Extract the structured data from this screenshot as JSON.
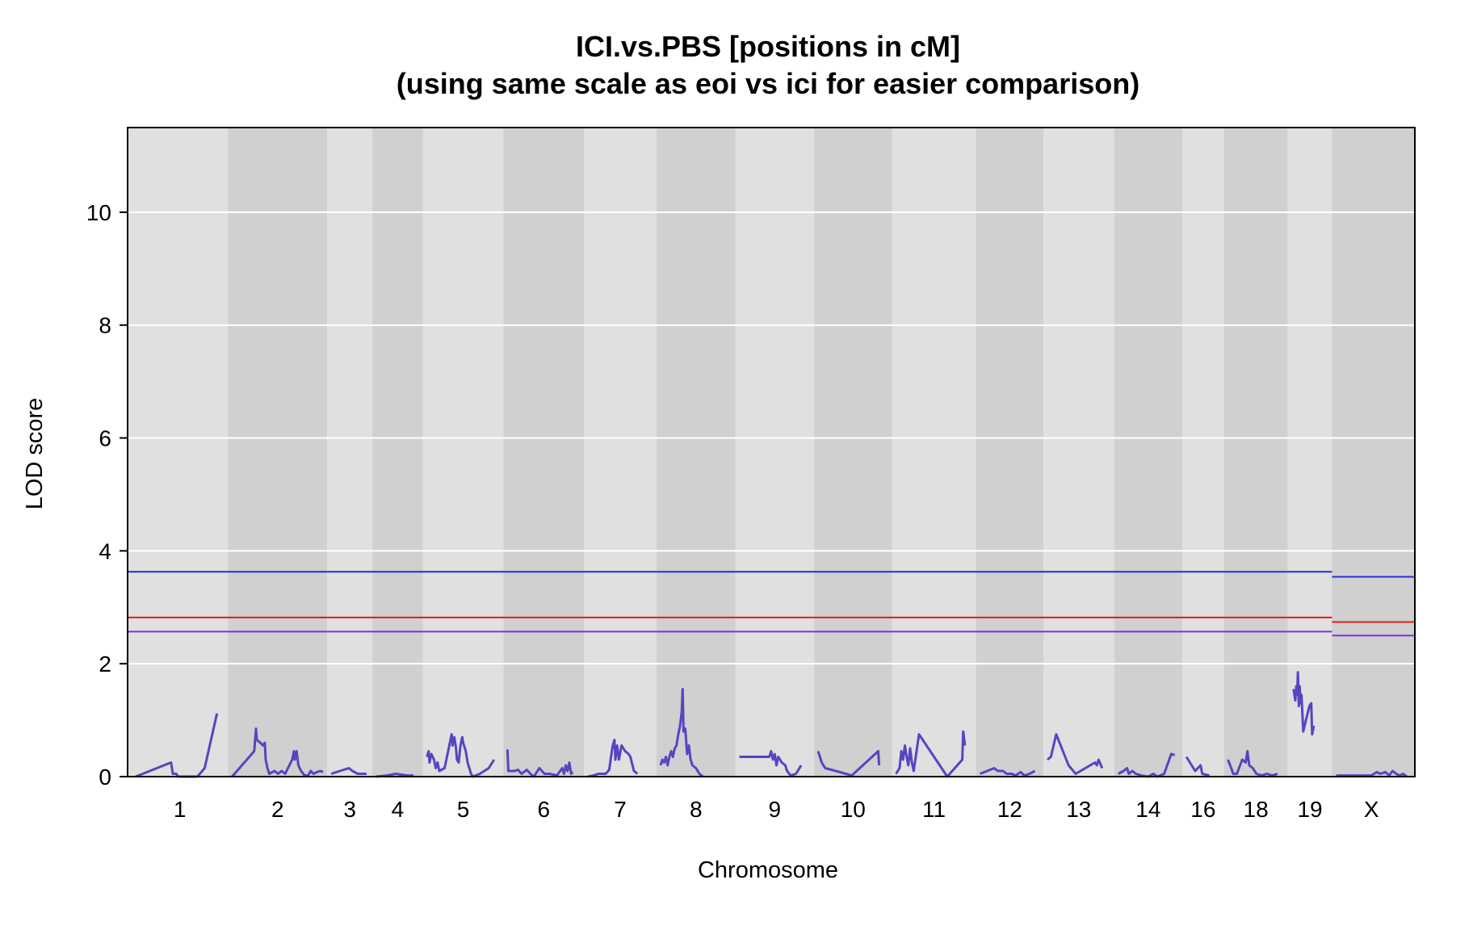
{
  "chart_data": {
    "type": "line",
    "title_line1": "ICI.vs.PBS [positions in cM]",
    "title_line2": "(using same scale as eoi vs ici for easier comparison)",
    "xlabel": "Chromosome",
    "ylabel": "LOD score",
    "ylim": [
      0,
      11.5
    ],
    "yticks": [
      0,
      2,
      4,
      6,
      8,
      10
    ],
    "grid": "horizontal",
    "colors": {
      "band_light": "#e0e0e0",
      "band_dark": "#d0d0d0",
      "gridline": "#ffffff",
      "lod_curve": "#5546c0",
      "threshold_high": "#2a2ad6",
      "threshold_mid": "#e31a1c",
      "threshold_low": "#8a2be2"
    },
    "chromosomes": [
      {
        "label": "1",
        "length": 100,
        "points": [
          [
            0,
            0
          ],
          [
            40,
            0.25
          ],
          [
            42,
            0.05
          ],
          [
            46,
            0.05
          ],
          [
            48,
            0
          ],
          [
            70,
            0
          ],
          [
            78,
            0.15
          ],
          [
            92,
            1.12
          ]
        ]
      },
      {
        "label": "2",
        "length": 103,
        "points": [
          [
            0,
            0
          ],
          [
            25,
            0.45
          ],
          [
            27,
            0.85
          ],
          [
            28,
            0.65
          ],
          [
            32,
            0.6
          ],
          [
            35,
            0.55
          ],
          [
            37,
            0.6
          ],
          [
            38,
            0.3
          ],
          [
            40,
            0.15
          ],
          [
            42,
            0.05
          ],
          [
            48,
            0.1
          ],
          [
            52,
            0.05
          ],
          [
            56,
            0.1
          ],
          [
            60,
            0.05
          ],
          [
            68,
            0.3
          ],
          [
            70,
            0.45
          ],
          [
            71,
            0.3
          ],
          [
            73,
            0.45
          ],
          [
            75,
            0.2
          ],
          [
            78,
            0.1
          ],
          [
            82,
            0.02
          ],
          [
            86,
            0.02
          ],
          [
            89,
            0.1
          ],
          [
            92,
            0.05
          ],
          [
            96,
            0.08
          ],
          [
            100,
            0.1
          ],
          [
            103,
            0.08
          ]
        ]
      },
      {
        "label": "3",
        "length": 42,
        "points": [
          [
            0,
            0.05
          ],
          [
            20,
            0.15
          ],
          [
            24,
            0.1
          ],
          [
            30,
            0.05
          ],
          [
            36,
            0.05
          ],
          [
            40,
            0.05
          ]
        ]
      },
      {
        "label": "4",
        "length": 48,
        "points": [
          [
            0,
            0
          ],
          [
            12,
            0.02
          ],
          [
            22,
            0.05
          ],
          [
            30,
            0.03
          ],
          [
            36,
            0.02
          ],
          [
            42,
            0.02
          ]
        ]
      },
      {
        "label": "5",
        "length": 82,
        "points": [
          [
            0,
            0.35
          ],
          [
            2,
            0.45
          ],
          [
            3,
            0.25
          ],
          [
            5,
            0.4
          ],
          [
            8,
            0.3
          ],
          [
            10,
            0.15
          ],
          [
            12,
            0.25
          ],
          [
            14,
            0.1
          ],
          [
            20,
            0.15
          ],
          [
            26,
            0.6
          ],
          [
            28,
            0.75
          ],
          [
            29,
            0.55
          ],
          [
            31,
            0.7
          ],
          [
            33,
            0.5
          ],
          [
            34,
            0.3
          ],
          [
            36,
            0.25
          ],
          [
            38,
            0.55
          ],
          [
            40,
            0.7
          ],
          [
            41,
            0.6
          ],
          [
            44,
            0.45
          ],
          [
            46,
            0.25
          ],
          [
            50,
            0.05
          ],
          [
            52,
            0
          ],
          [
            60,
            0.05
          ],
          [
            70,
            0.15
          ],
          [
            76,
            0.3
          ]
        ]
      },
      {
        "label": "6",
        "length": 82,
        "points": [
          [
            0,
            0.48
          ],
          [
            1,
            0.1
          ],
          [
            8,
            0.1
          ],
          [
            12,
            0.12
          ],
          [
            16,
            0.05
          ],
          [
            22,
            0.12
          ],
          [
            26,
            0.05
          ],
          [
            30,
            0
          ],
          [
            36,
            0.15
          ],
          [
            42,
            0.05
          ],
          [
            48,
            0.05
          ],
          [
            56,
            0.02
          ],
          [
            62,
            0.15
          ],
          [
            64,
            0.05
          ],
          [
            66,
            0.2
          ],
          [
            68,
            0.1
          ],
          [
            70,
            0.25
          ],
          [
            72,
            0.05
          ],
          [
            74,
            0.08
          ]
        ]
      },
      {
        "label": "7",
        "length": 73,
        "points": [
          [
            0,
            0
          ],
          [
            6,
            0.02
          ],
          [
            12,
            0.05
          ],
          [
            20,
            0.05
          ],
          [
            24,
            0.12
          ],
          [
            26,
            0.35
          ],
          [
            28,
            0.55
          ],
          [
            30,
            0.65
          ],
          [
            31,
            0.3
          ],
          [
            33,
            0.55
          ],
          [
            35,
            0.3
          ],
          [
            38,
            0.55
          ],
          [
            40,
            0.5
          ],
          [
            42,
            0.45
          ],
          [
            46,
            0.4
          ],
          [
            48,
            0.35
          ],
          [
            52,
            0.1
          ],
          [
            56,
            0.05
          ]
        ]
      },
      {
        "label": "8",
        "length": 80,
        "points": [
          [
            0,
            0.2
          ],
          [
            2,
            0.3
          ],
          [
            4,
            0.25
          ],
          [
            6,
            0.35
          ],
          [
            8,
            0.2
          ],
          [
            10,
            0.35
          ],
          [
            12,
            0.45
          ],
          [
            14,
            0.35
          ],
          [
            16,
            0.5
          ],
          [
            18,
            0.55
          ],
          [
            20,
            0.75
          ],
          [
            22,
            0.9
          ],
          [
            24,
            1.15
          ],
          [
            25,
            1.55
          ],
          [
            26,
            0.8
          ],
          [
            28,
            0.85
          ],
          [
            30,
            0.4
          ],
          [
            32,
            0.55
          ],
          [
            34,
            0.3
          ],
          [
            36,
            0.2
          ],
          [
            40,
            0.15
          ],
          [
            44,
            0.05
          ],
          [
            48,
            0
          ]
        ]
      },
      {
        "label": "9",
        "length": 80,
        "points": [
          [
            0,
            0.35
          ],
          [
            20,
            0.35
          ],
          [
            34,
            0.35
          ],
          [
            36,
            0.45
          ],
          [
            38,
            0.3
          ],
          [
            40,
            0.4
          ],
          [
            42,
            0.2
          ],
          [
            44,
            0.35
          ],
          [
            46,
            0.3
          ],
          [
            48,
            0.25
          ],
          [
            52,
            0.2
          ],
          [
            54,
            0.1
          ],
          [
            58,
            0.02
          ],
          [
            64,
            0.05
          ],
          [
            70,
            0.2
          ]
        ]
      },
      {
        "label": "10",
        "length": 79,
        "points": [
          [
            0,
            0.45
          ],
          [
            2,
            0.35
          ],
          [
            4,
            0.25
          ],
          [
            8,
            0.15
          ],
          [
            20,
            0.1
          ],
          [
            38,
            0.02
          ],
          [
            68,
            0.45
          ],
          [
            69,
            0.2
          ]
        ]
      },
      {
        "label": "11",
        "length": 86,
        "points": [
          [
            0,
            0.05
          ],
          [
            4,
            0.15
          ],
          [
            6,
            0.45
          ],
          [
            8,
            0.3
          ],
          [
            10,
            0.55
          ],
          [
            12,
            0.35
          ],
          [
            14,
            0.2
          ],
          [
            16,
            0.5
          ],
          [
            18,
            0.25
          ],
          [
            20,
            0.1
          ],
          [
            26,
            0.75
          ],
          [
            58,
            0
          ],
          [
            75,
            0.3
          ],
          [
            76,
            0.8
          ],
          [
            78,
            0.55
          ]
        ]
      },
      {
        "label": "12",
        "length": 67,
        "points": [
          [
            0,
            0.05
          ],
          [
            16,
            0.15
          ],
          [
            20,
            0.1
          ],
          [
            26,
            0.1
          ],
          [
            30,
            0.05
          ],
          [
            36,
            0.05
          ],
          [
            40,
            0.02
          ],
          [
            46,
            0.08
          ],
          [
            50,
            0.02
          ],
          [
            56,
            0.05
          ],
          [
            62,
            0.1
          ]
        ]
      },
      {
        "label": "13",
        "length": 71,
        "points": [
          [
            0,
            0.3
          ],
          [
            4,
            0.35
          ],
          [
            10,
            0.75
          ],
          [
            24,
            0.2
          ],
          [
            32,
            0.05
          ],
          [
            54,
            0.25
          ],
          [
            56,
            0.2
          ],
          [
            58,
            0.3
          ],
          [
            62,
            0.15
          ]
        ]
      },
      {
        "label": "14",
        "length": 68,
        "points": [
          [
            0,
            0.05
          ],
          [
            6,
            0.1
          ],
          [
            10,
            0.15
          ],
          [
            12,
            0.05
          ],
          [
            16,
            0.1
          ],
          [
            20,
            0.05
          ],
          [
            26,
            0.02
          ],
          [
            34,
            0
          ],
          [
            40,
            0.05
          ],
          [
            44,
            0
          ],
          [
            52,
            0.05
          ],
          [
            60,
            0.4
          ],
          [
            64,
            0.38
          ]
        ]
      },
      {
        "label": "16",
        "length": 38,
        "points": [
          [
            0,
            0.35
          ],
          [
            10,
            0.1
          ],
          [
            16,
            0.2
          ],
          [
            18,
            0.05
          ],
          [
            26,
            0.02
          ]
        ]
      },
      {
        "label": "18",
        "length": 63,
        "points": [
          [
            0,
            0.3
          ],
          [
            6,
            0.05
          ],
          [
            10,
            0.05
          ],
          [
            16,
            0.3
          ],
          [
            20,
            0.25
          ],
          [
            22,
            0.45
          ],
          [
            24,
            0.2
          ],
          [
            28,
            0.15
          ],
          [
            32,
            0.05
          ],
          [
            38,
            0.02
          ],
          [
            44,
            0.05
          ],
          [
            50,
            0.02
          ],
          [
            56,
            0.05
          ]
        ]
      },
      {
        "label": "19",
        "length": 41,
        "points": [
          [
            2,
            1.55
          ],
          [
            4,
            1.35
          ],
          [
            5,
            1.6
          ],
          [
            6,
            1.45
          ],
          [
            7,
            1.85
          ],
          [
            8,
            1.25
          ],
          [
            9,
            1.6
          ],
          [
            10,
            1.3
          ],
          [
            11,
            1.45
          ],
          [
            13,
            0.8
          ],
          [
            16,
            1.0
          ],
          [
            20,
            1.25
          ],
          [
            22,
            1.3
          ],
          [
            23,
            0.75
          ],
          [
            25,
            0.9
          ]
        ]
      },
      {
        "label": "X",
        "length": 80,
        "points": [
          [
            0,
            0.02
          ],
          [
            20,
            0.02
          ],
          [
            40,
            0.02
          ],
          [
            46,
            0.08
          ],
          [
            50,
            0.05
          ],
          [
            56,
            0.08
          ],
          [
            60,
            0.02
          ],
          [
            64,
            0.1
          ],
          [
            68,
            0.05
          ],
          [
            72,
            0.02
          ],
          [
            76,
            0.05
          ],
          [
            80,
            0
          ]
        ]
      }
    ],
    "thresholds": [
      {
        "color_key": "threshold_high",
        "autosome": 3.63,
        "x": 3.54
      },
      {
        "color_key": "threshold_mid",
        "autosome": 2.82,
        "x": 2.74
      },
      {
        "color_key": "threshold_low",
        "autosome": 2.57,
        "x": 2.5
      }
    ]
  }
}
